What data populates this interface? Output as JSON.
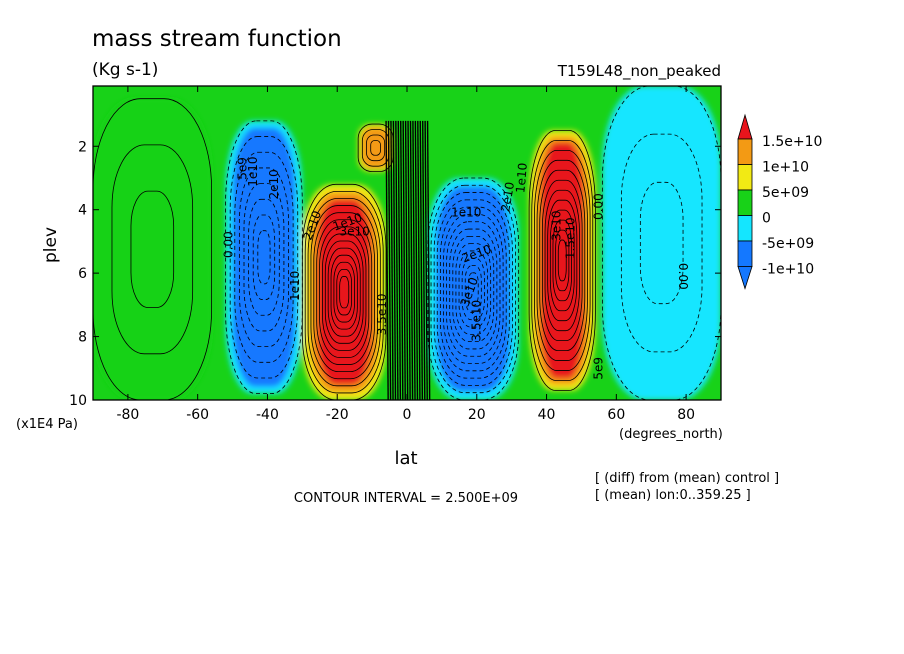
{
  "chart_data": {
    "type": "heatmap",
    "title": "mass stream function",
    "units": "(Kg s-1)",
    "experiment": "T159L48_non_peaked",
    "xlabel": "lat",
    "x_units": "(degrees_north)",
    "ylabel": "plev",
    "y_units": "(x1E4 Pa)",
    "x_ticks": [
      -80,
      -60,
      -40,
      -20,
      0,
      20,
      40,
      60,
      80
    ],
    "y_ticks": [
      2,
      4,
      6,
      8,
      10
    ],
    "xlim": [
      -90,
      90
    ],
    "ylim": [
      10,
      0.1
    ],
    "contour_interval": "CONTOUR INTERVAL = 2.500E+09",
    "notes": [
      "[ (diff) from (mean) control ]",
      "[ (mean) lon:0..359.25 ]"
    ],
    "colorbar": {
      "labels": [
        "1.5e+10",
        "1e+10",
        "5e+09",
        "0",
        "-5e+09",
        "-1e+10"
      ],
      "colors": [
        "#e8141c",
        "#f39a14",
        "#f2ea14",
        "#18d218",
        "#14e6ff",
        "#1478ff"
      ]
    },
    "cells": [
      {
        "name": "southern-high-lat-positive",
        "lat": [
          -90,
          -56
        ],
        "plev": [
          0.5,
          10
        ],
        "fill": "#18d218",
        "peak": 2000000000.0
      },
      {
        "name": "southern-midlat-negative",
        "lat": [
          -52,
          -30
        ],
        "plev": [
          1.2,
          9.8
        ],
        "fill": "#1478ff",
        "peak": -20000000000.0
      },
      {
        "name": "southern-hadley-positive",
        "lat": [
          -30,
          -6
        ],
        "plev": [
          3.2,
          10
        ],
        "fill": "#e8141c",
        "peak": 35000000000.0
      },
      {
        "name": "upper-positive-cell",
        "lat": [
          -14,
          -4
        ],
        "plev": [
          1.3,
          2.8
        ],
        "fill": "#f39a14",
        "peak": 10000000000.0
      },
      {
        "name": "northern-hadley-negative",
        "lat": [
          6,
          32
        ],
        "plev": [
          3.0,
          10
        ],
        "fill": "#1478ff",
        "peak": -35000000000.0
      },
      {
        "name": "northern-midlat-positive",
        "lat": [
          35,
          54
        ],
        "plev": [
          1.5,
          9.7
        ],
        "fill": "#e8141c",
        "peak": 30000000000.0
      },
      {
        "name": "northern-high-lat-negative",
        "lat": [
          56,
          90
        ],
        "plev": [
          0.1,
          10
        ],
        "fill": "#14e6ff",
        "peak": -5000000000.0
      }
    ],
    "contour_labels": [
      {
        "text": "5e9",
        "lat": -47,
        "plev": 2.7,
        "rot": -90
      },
      {
        "text": "1e10",
        "lat": -44,
        "plev": 2.8,
        "rot": -90
      },
      {
        "text": "2e10",
        "lat": -38,
        "plev": 3.2,
        "rot": -90
      },
      {
        "text": "0.00",
        "lat": -51,
        "plev": 5.1,
        "rot": -90
      },
      {
        "text": "1e10",
        "lat": -32,
        "plev": 6.4,
        "rot": -90
      },
      {
        "text": "2e10",
        "lat": -27,
        "plev": 4.5,
        "rot": -70
      },
      {
        "text": "1e10",
        "lat": -17,
        "plev": 4.4,
        "rot": -20
      },
      {
        "text": "3e10",
        "lat": -15,
        "plev": 4.7,
        "rot": 0
      },
      {
        "text": "3.5e10",
        "lat": -7,
        "plev": 7.3,
        "rot": -90
      },
      {
        "text": "1e10",
        "lat": 17,
        "plev": 4.1,
        "rot": 0
      },
      {
        "text": "2e10",
        "lat": 20,
        "plev": 5.4,
        "rot": -20
      },
      {
        "text": "3.5e10",
        "lat": 20,
        "plev": 7.5,
        "rot": -90
      },
      {
        "text": "3e10",
        "lat": 18,
        "plev": 6.6,
        "rot": -70
      },
      {
        "text": "2e10",
        "lat": 29,
        "plev": 3.6,
        "rot": -80
      },
      {
        "text": "1e10",
        "lat": 33,
        "plev": 3.0,
        "rot": -85
      },
      {
        "text": "3e10",
        "lat": 43,
        "plev": 4.5,
        "rot": -90
      },
      {
        "text": "1.5e10",
        "lat": 47,
        "plev": 4.9,
        "rot": -90
      },
      {
        "text": "0.00",
        "lat": 55,
        "plev": 3.9,
        "rot": -90
      },
      {
        "text": "5e9",
        "lat": 55,
        "plev": 9.0,
        "rot": -90
      },
      {
        "text": "0.00",
        "lat": 79,
        "plev": 6.1,
        "rot": 90
      }
    ]
  }
}
